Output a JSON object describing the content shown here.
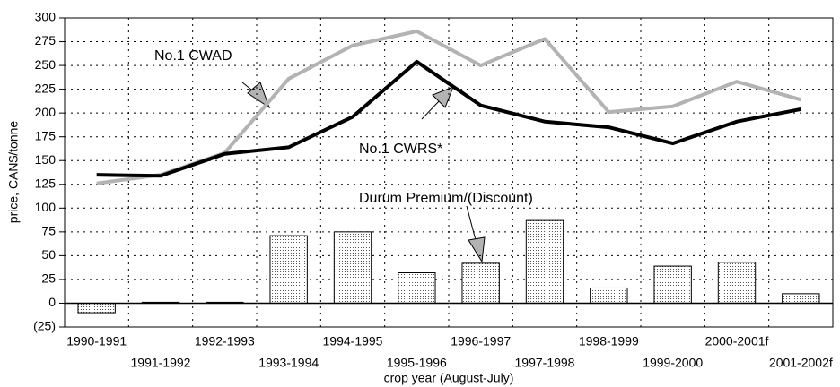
{
  "chart_data": {
    "type": "bar",
    "y_label": "price, CAN$/tonne",
    "x_label": "crop year (August-July)",
    "categories": [
      "1990-1991",
      "1991-1992",
      "1992-1993",
      "1993-1994",
      "1994-1995",
      "1995-1996",
      "1996-1997",
      "1997-1998",
      "1998-1999",
      "1999-2000",
      "2000-2001f",
      "2001-2002f"
    ],
    "series": [
      {
        "name": "Durum Premium/(Discount)",
        "type": "bar",
        "color": "#ffffff",
        "values": [
          -10,
          1,
          1,
          71,
          75,
          32,
          42,
          87,
          16,
          39,
          43,
          10
        ]
      },
      {
        "name": "No.1 CWAD",
        "type": "line",
        "color": "#b3b3b3",
        "values": [
          126,
          135,
          158,
          236,
          271,
          286,
          250,
          278,
          201,
          207,
          233,
          214
        ]
      },
      {
        "name": "No.1 CWRS*",
        "type": "line",
        "color": "#000000",
        "values": [
          135,
          134,
          157,
          164,
          196,
          254,
          208,
          191,
          185,
          168,
          191,
          204
        ]
      }
    ],
    "ylim": [
      -25,
      300
    ],
    "yticks": [
      {
        "value": -25,
        "label": "(25)"
      },
      0,
      25,
      50,
      75,
      100,
      125,
      150,
      175,
      200,
      225,
      250,
      275,
      300
    ],
    "grid": true
  }
}
